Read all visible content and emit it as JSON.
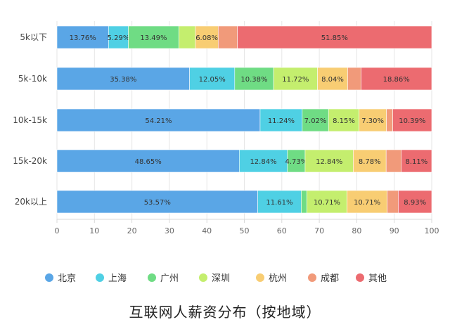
{
  "chart_data": {
    "type": "bar",
    "orientation": "horizontal",
    "stacked": true,
    "title": "互联网人薪资分布（按地域）",
    "categories": [
      "5k以下",
      "5k-10k",
      "10k-15k",
      "15k-20k",
      "20k以上"
    ],
    "xlim": [
      0,
      100
    ],
    "xticks": [
      "0",
      "10",
      "20",
      "30",
      "40",
      "50",
      "60",
      "70",
      "80",
      "90",
      "100"
    ],
    "legend_position": "bottom",
    "series": [
      {
        "name": "北京",
        "color": "#5aa6e6",
        "values": [
          13.76,
          35.38,
          54.21,
          48.65,
          53.57
        ],
        "labels": [
          "13.76%",
          "35.38%",
          "54.21%",
          "48.65%",
          "53.57%"
        ]
      },
      {
        "name": "上海",
        "color": "#4fd0e4",
        "values": [
          5.29,
          12.05,
          11.24,
          12.84,
          11.61
        ],
        "labels": [
          "5.29%",
          "12.05%",
          "11.24%",
          "12.84%",
          "11.61%"
        ]
      },
      {
        "name": "广州",
        "color": "#6fdc84",
        "values": [
          13.49,
          10.38,
          7.02,
          4.73,
          1.5
        ],
        "labels": [
          "13.49%",
          "10.38%",
          "7.02%",
          "4.73%",
          ""
        ]
      },
      {
        "name": "深圳",
        "color": "#c4ee6e",
        "values": [
          4.4,
          11.72,
          8.15,
          12.84,
          10.71
        ],
        "labels": [
          "",
          "11.72%",
          "8.15%",
          "12.84%",
          "10.71%"
        ]
      },
      {
        "name": "杭州",
        "color": "#f8cd73",
        "values": [
          6.08,
          8.04,
          7.3,
          8.78,
          10.71
        ],
        "labels": [
          "6.08%",
          "8.04%",
          "7.30%",
          "8.78%",
          "10.71%"
        ]
      },
      {
        "name": "成都",
        "color": "#f19a7a",
        "values": [
          5.13,
          3.57,
          1.69,
          4.05,
          2.97
        ],
        "labels": [
          "",
          "",
          "",
          "",
          ""
        ]
      },
      {
        "name": "其他",
        "color": "#ec6b70",
        "values": [
          51.85,
          18.86,
          10.39,
          8.11,
          8.93
        ],
        "labels": [
          "51.85%",
          "18.86%",
          "10.39%",
          "8.11%",
          "8.93%"
        ]
      }
    ],
    "colors": {
      "axis": "#d9d9d9",
      "grid": "#e6e6e6"
    }
  }
}
